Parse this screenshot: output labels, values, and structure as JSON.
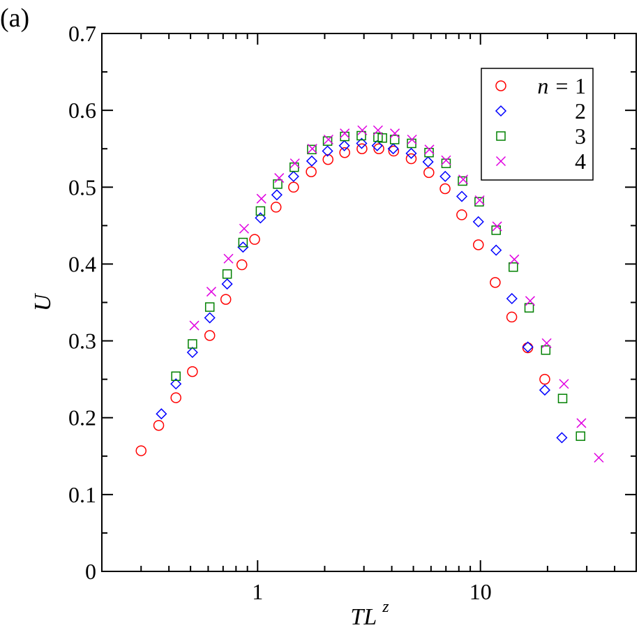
{
  "panel_label": "(a)",
  "colors": {
    "n1": "#ff0000",
    "n2": "#0000ff",
    "n3": "#008000",
    "n4": "#e000e0"
  },
  "chart_data": {
    "type": "scatter",
    "title": "",
    "xlabel": "TL",
    "xlabel_superscript": "z",
    "ylabel": "U",
    "xscale": "log",
    "xlim": [
      0.2,
      50
    ],
    "ylim": [
      0,
      0.7
    ],
    "grid": false,
    "legend_position": "top-right",
    "legend_title_prefix": "n = ",
    "x_ticks": [
      {
        "value": 1,
        "label": "1"
      },
      {
        "value": 10,
        "label": "10"
      }
    ],
    "y_ticks": [
      {
        "value": 0,
        "label": "0"
      },
      {
        "value": 0.1,
        "label": "0.1"
      },
      {
        "value": 0.2,
        "label": "0.2"
      },
      {
        "value": 0.3,
        "label": "0.3"
      },
      {
        "value": 0.4,
        "label": "0.4"
      },
      {
        "value": 0.5,
        "label": "0.5"
      },
      {
        "value": 0.6,
        "label": "0.6"
      },
      {
        "value": 0.7,
        "label": "0.7"
      }
    ],
    "series": [
      {
        "name": "1",
        "marker": "circle",
        "color_key": "n1",
        "x": [
          0.3,
          0.36,
          0.43,
          0.51,
          0.61,
          0.72,
          0.85,
          0.97,
          1.21,
          1.45,
          1.74,
          2.07,
          2.46,
          2.94,
          3.5,
          4.08,
          4.89,
          5.87,
          6.94,
          8.24,
          9.79,
          11.65,
          13.82,
          16.3,
          19.44
        ],
        "y": [
          0.157,
          0.19,
          0.226,
          0.26,
          0.307,
          0.354,
          0.399,
          0.432,
          0.474,
          0.5,
          0.52,
          0.536,
          0.545,
          0.55,
          0.55,
          0.547,
          0.537,
          0.519,
          0.498,
          0.464,
          0.425,
          0.376,
          0.331,
          0.291,
          0.25
        ]
      },
      {
        "name": "2",
        "marker": "diamond",
        "color_key": "n2",
        "x": [
          0.37,
          0.43,
          0.51,
          0.61,
          0.73,
          0.86,
          1.03,
          1.22,
          1.45,
          1.75,
          2.06,
          2.45,
          2.93,
          3.44,
          4.06,
          4.89,
          5.82,
          6.95,
          8.25,
          9.79,
          11.76,
          13.84,
          16.32,
          19.44,
          23.19
        ],
        "y": [
          0.205,
          0.244,
          0.285,
          0.33,
          0.374,
          0.422,
          0.46,
          0.49,
          0.514,
          0.534,
          0.547,
          0.554,
          0.557,
          0.554,
          0.55,
          0.544,
          0.533,
          0.514,
          0.488,
          0.455,
          0.418,
          0.355,
          0.292,
          0.236,
          0.174
        ]
      },
      {
        "name": "3",
        "marker": "square",
        "color_key": "n3",
        "x": [
          0.43,
          0.51,
          0.61,
          0.73,
          0.86,
          1.03,
          1.23,
          1.46,
          1.75,
          2.06,
          2.46,
          2.92,
          3.47,
          3.63,
          4.12,
          4.91,
          5.88,
          7.01,
          8.31,
          9.87,
          11.76,
          14.04,
          16.54,
          19.63,
          23.37,
          28.13
        ],
        "y": [
          0.254,
          0.296,
          0.344,
          0.387,
          0.428,
          0.469,
          0.504,
          0.526,
          0.549,
          0.56,
          0.566,
          0.567,
          0.565,
          0.564,
          0.562,
          0.557,
          0.545,
          0.531,
          0.508,
          0.481,
          0.444,
          0.396,
          0.343,
          0.288,
          0.225,
          0.176
        ]
      },
      {
        "name": "4",
        "marker": "cross",
        "color_key": "n4",
        "x": [
          0.52,
          0.62,
          0.74,
          0.87,
          1.04,
          1.25,
          1.47,
          1.76,
          2.08,
          2.46,
          2.95,
          3.47,
          4.13,
          4.93,
          5.9,
          7.01,
          8.37,
          9.92,
          11.88,
          14.19,
          16.71,
          19.82,
          23.7,
          28.38,
          33.98
        ],
        "y": [
          0.32,
          0.364,
          0.407,
          0.446,
          0.485,
          0.512,
          0.531,
          0.55,
          0.562,
          0.57,
          0.574,
          0.574,
          0.57,
          0.562,
          0.549,
          0.535,
          0.51,
          0.483,
          0.449,
          0.406,
          0.352,
          0.297,
          0.244,
          0.193,
          0.148
        ]
      }
    ]
  }
}
